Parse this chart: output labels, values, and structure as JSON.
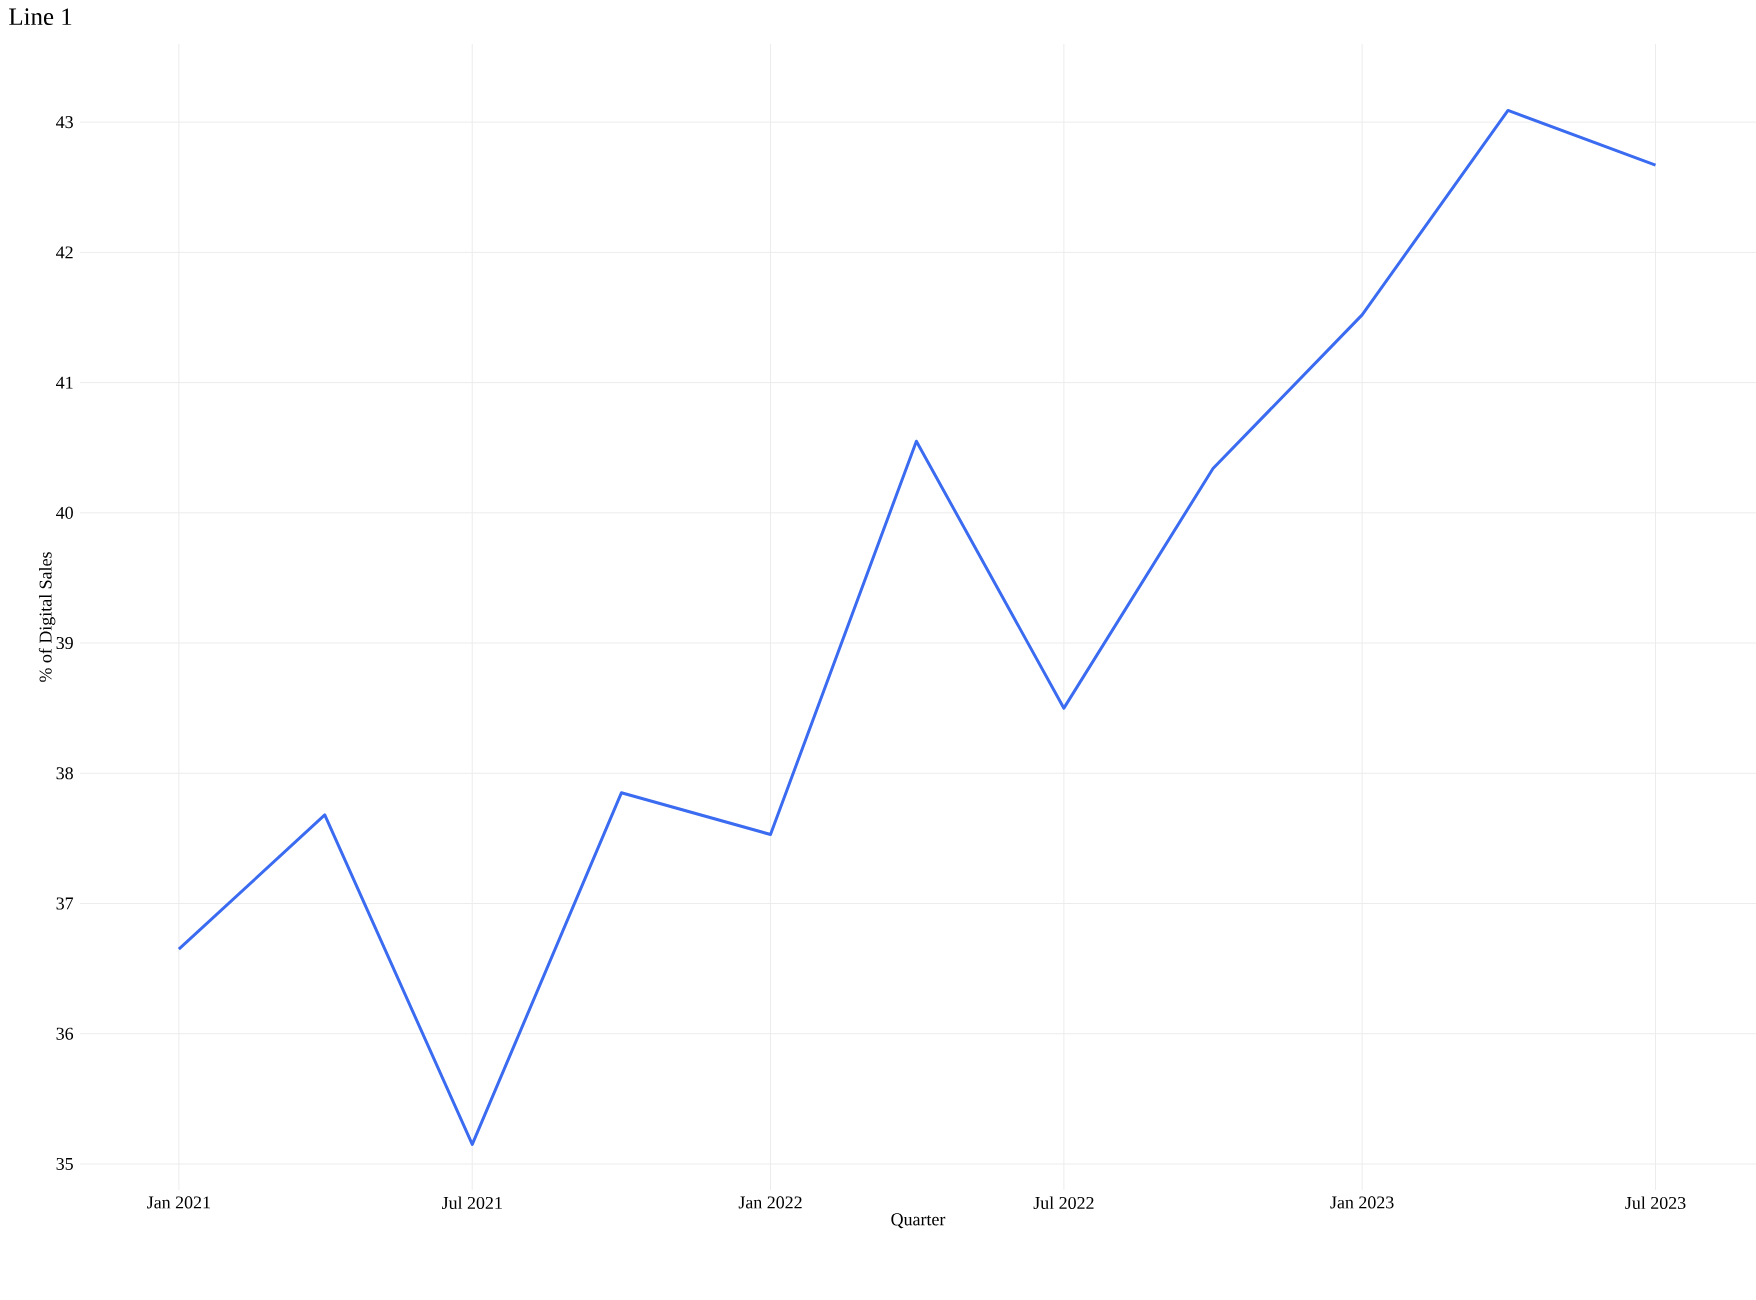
{
  "chart_data": {
    "type": "line",
    "title": "Line 1",
    "xlabel": "Quarter",
    "ylabel": "% of Digital Sales",
    "x": [
      "2021-01",
      "2021-04",
      "2021-07",
      "2021-10",
      "2022-01",
      "2022-04",
      "2022-07",
      "2022-10",
      "2023-01",
      "2023-04",
      "2023-07"
    ],
    "series": [
      {
        "color": "#3a6bf0",
        "values": [
          36.65,
          37.68,
          35.15,
          37.85,
          37.53,
          40.55,
          38.5,
          40.34,
          41.52,
          43.09,
          42.67
        ]
      }
    ],
    "xlim": [
      "2020-11",
      "2023-09"
    ],
    "xticks": [
      {
        "value": "2021-01",
        "label": "Jan 2021"
      },
      {
        "value": "2021-07",
        "label": "Jul 2021"
      },
      {
        "value": "2022-01",
        "label": "Jan 2022"
      },
      {
        "value": "2022-07",
        "label": "Jul 2022"
      },
      {
        "value": "2023-01",
        "label": "Jan 2023"
      },
      {
        "value": "2023-07",
        "label": "Jul 2023"
      }
    ],
    "ylim": [
      34.8,
      43.6
    ],
    "yticks": [
      35,
      36,
      37,
      38,
      39,
      40,
      41,
      42,
      43
    ],
    "grid": true,
    "marker": "none",
    "line_style": "solid"
  }
}
